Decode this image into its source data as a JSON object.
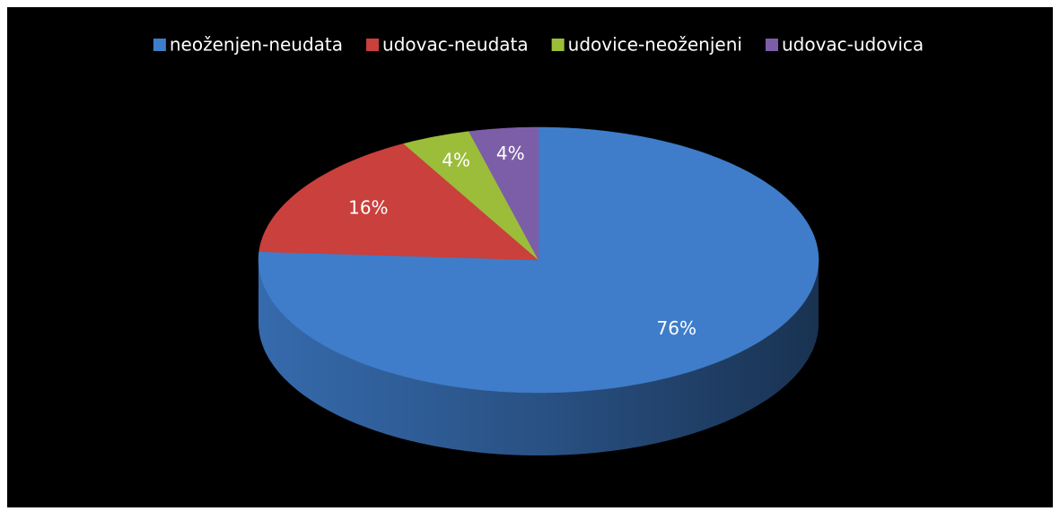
{
  "chart_data": {
    "type": "pie",
    "categories": [
      "neoženjen-neudata",
      "udovac-neudata",
      "udovice-neoženjeni",
      "udovac-udovica"
    ],
    "values": [
      76,
      16,
      4,
      4
    ],
    "value_labels": [
      "76%",
      "16%",
      "4%",
      "4%"
    ],
    "colors": [
      "#3f7dcb",
      "#c9403c",
      "#9bbd3a",
      "#7c5ea8"
    ],
    "legend": "top"
  }
}
